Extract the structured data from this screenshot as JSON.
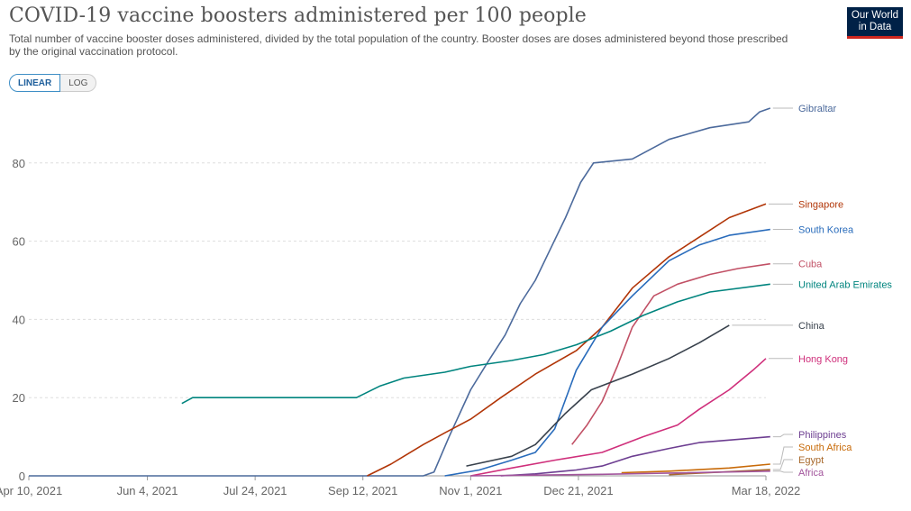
{
  "header": {
    "title": "COVID-19 vaccine boosters administered per 100 people",
    "subtitle": "Total number of vaccine booster doses administered, divided by the total population of the country. Booster doses are doses administered beyond those prescribed by the original vaccination protocol.",
    "logo_line1": "Our World",
    "logo_line2": "in Data",
    "logo_bg": "#002147",
    "logo_accent": "#ce261e"
  },
  "toggle": {
    "linear_label": "LINEAR",
    "log_label": "LOG",
    "selected": "LINEAR"
  },
  "chart_data": {
    "type": "line",
    "title": "COVID-19 vaccine boosters administered per 100 people",
    "xlabel": "",
    "ylabel": "",
    "xlim": [
      "2021-04-10",
      "2022-03-18"
    ],
    "ylim": [
      0,
      94
    ],
    "yticks": [
      0,
      20,
      40,
      60,
      80
    ],
    "xticks": [
      "2021-04-10",
      "2021-06-04",
      "2021-07-24",
      "2021-09-12",
      "2021-11-01",
      "2021-12-21",
      "2022-03-18"
    ],
    "xtick_labels": [
      "Apr 10, 2021",
      "Jun 4, 2021",
      "Jul 24, 2021",
      "Sep 12, 2021",
      "Nov 1, 2021",
      "Dec 21, 2021",
      "Mar 18, 2022"
    ],
    "grid": "horizontal dashed",
    "legend": "right (end-of-line labels)",
    "series": [
      {
        "name": "Gibraltar",
        "color": "#4c6a9c",
        "points": [
          [
            "2021-04-10",
            0
          ],
          [
            "2021-10-10",
            0
          ],
          [
            "2021-10-15",
            1
          ],
          [
            "2021-10-22",
            10
          ],
          [
            "2021-11-01",
            22
          ],
          [
            "2021-11-10",
            30
          ],
          [
            "2021-11-17",
            36
          ],
          [
            "2021-11-24",
            44
          ],
          [
            "2021-12-01",
            50
          ],
          [
            "2021-12-08",
            58
          ],
          [
            "2021-12-15",
            66
          ],
          [
            "2021-12-22",
            75
          ],
          [
            "2021-12-28",
            80
          ],
          [
            "2022-01-15",
            81
          ],
          [
            "2022-02-01",
            86
          ],
          [
            "2022-02-20",
            89
          ],
          [
            "2022-03-10",
            90.5
          ],
          [
            "2022-03-15",
            93
          ],
          [
            "2022-03-20",
            94
          ]
        ]
      },
      {
        "name": "Singapore",
        "color": "#b13507",
        "points": [
          [
            "2021-09-14",
            0
          ],
          [
            "2021-09-25",
            3
          ],
          [
            "2021-10-10",
            8
          ],
          [
            "2021-10-20",
            11
          ],
          [
            "2021-11-01",
            14.5
          ],
          [
            "2021-11-15",
            20
          ],
          [
            "2021-12-01",
            26
          ],
          [
            "2021-12-20",
            32
          ],
          [
            "2022-01-01",
            38
          ],
          [
            "2022-01-15",
            48
          ],
          [
            "2022-02-01",
            56
          ],
          [
            "2022-02-15",
            61
          ],
          [
            "2022-03-01",
            66
          ],
          [
            "2022-03-18",
            69.5
          ]
        ]
      },
      {
        "name": "South Korea",
        "color": "#286bbb",
        "points": [
          [
            "2021-10-20",
            0
          ],
          [
            "2021-11-05",
            1.5
          ],
          [
            "2021-11-20",
            4
          ],
          [
            "2021-12-01",
            6
          ],
          [
            "2021-12-10",
            12
          ],
          [
            "2021-12-20",
            27
          ],
          [
            "2022-01-01",
            38
          ],
          [
            "2022-01-15",
            46
          ],
          [
            "2022-02-01",
            55
          ],
          [
            "2022-02-15",
            59
          ],
          [
            "2022-03-01",
            61.5
          ],
          [
            "2022-03-20",
            63
          ]
        ]
      },
      {
        "name": "Cuba",
        "color": "#c15065",
        "points": [
          [
            "2021-12-18",
            8
          ],
          [
            "2021-12-25",
            13
          ],
          [
            "2022-01-01",
            19
          ],
          [
            "2022-01-08",
            28
          ],
          [
            "2022-01-15",
            38
          ],
          [
            "2022-01-25",
            46
          ],
          [
            "2022-02-05",
            49
          ],
          [
            "2022-02-20",
            51.5
          ],
          [
            "2022-03-05",
            53
          ],
          [
            "2022-03-20",
            54.2
          ]
        ]
      },
      {
        "name": "United Arab Emirates",
        "color": "#00847e",
        "points": [
          [
            "2021-06-20",
            18.5
          ],
          [
            "2021-06-25",
            20
          ],
          [
            "2021-09-09",
            20
          ],
          [
            "2021-09-20",
            23
          ],
          [
            "2021-10-01",
            25
          ],
          [
            "2021-10-20",
            26.5
          ],
          [
            "2021-11-01",
            28
          ],
          [
            "2021-11-20",
            29.5
          ],
          [
            "2021-12-05",
            31
          ],
          [
            "2021-12-20",
            33.5
          ],
          [
            "2022-01-05",
            37
          ],
          [
            "2022-01-20",
            41
          ],
          [
            "2022-02-05",
            44.5
          ],
          [
            "2022-02-20",
            47
          ],
          [
            "2022-03-20",
            49
          ]
        ]
      },
      {
        "name": "China",
        "color": "#38414c",
        "points": [
          [
            "2021-10-30",
            2.5
          ],
          [
            "2021-11-20",
            5
          ],
          [
            "2021-12-01",
            8
          ],
          [
            "2021-12-15",
            16
          ],
          [
            "2021-12-27",
            22
          ],
          [
            "2022-01-15",
            26
          ],
          [
            "2022-02-01",
            30
          ],
          [
            "2022-02-15",
            34
          ],
          [
            "2022-03-01",
            38.5
          ]
        ]
      },
      {
        "name": "Hong Kong",
        "color": "#cf2f7b",
        "points": [
          [
            "2021-11-01",
            0
          ],
          [
            "2021-11-20",
            2
          ],
          [
            "2021-12-10",
            4
          ],
          [
            "2022-01-01",
            6
          ],
          [
            "2022-01-20",
            10
          ],
          [
            "2022-02-05",
            13
          ],
          [
            "2022-02-15",
            17
          ],
          [
            "2022-03-01",
            22
          ],
          [
            "2022-03-12",
            27
          ],
          [
            "2022-03-18",
            30
          ]
        ]
      },
      {
        "name": "Philippines",
        "color": "#6d3e91",
        "points": [
          [
            "2021-11-15",
            0
          ],
          [
            "2021-12-01",
            0.5
          ],
          [
            "2021-12-20",
            1.5
          ],
          [
            "2022-01-01",
            2.5
          ],
          [
            "2022-01-15",
            5
          ],
          [
            "2022-02-01",
            7
          ],
          [
            "2022-02-15",
            8.5
          ],
          [
            "2022-03-20",
            10
          ]
        ]
      },
      {
        "name": "South Africa",
        "color": "#c86a08",
        "points": [
          [
            "2022-01-10",
            0.8
          ],
          [
            "2022-02-01",
            1.2
          ],
          [
            "2022-03-01",
            2
          ],
          [
            "2022-03-20",
            3
          ]
        ]
      },
      {
        "name": "Egypt",
        "color": "#a8692c",
        "points": [
          [
            "2022-02-01",
            0.3
          ],
          [
            "2022-03-20",
            1.6
          ]
        ]
      },
      {
        "name": "Africa",
        "color": "#a2559c",
        "points": [
          [
            "2021-11-01",
            0
          ],
          [
            "2022-01-01",
            0.4
          ],
          [
            "2022-03-20",
            1.2
          ]
        ]
      }
    ]
  }
}
